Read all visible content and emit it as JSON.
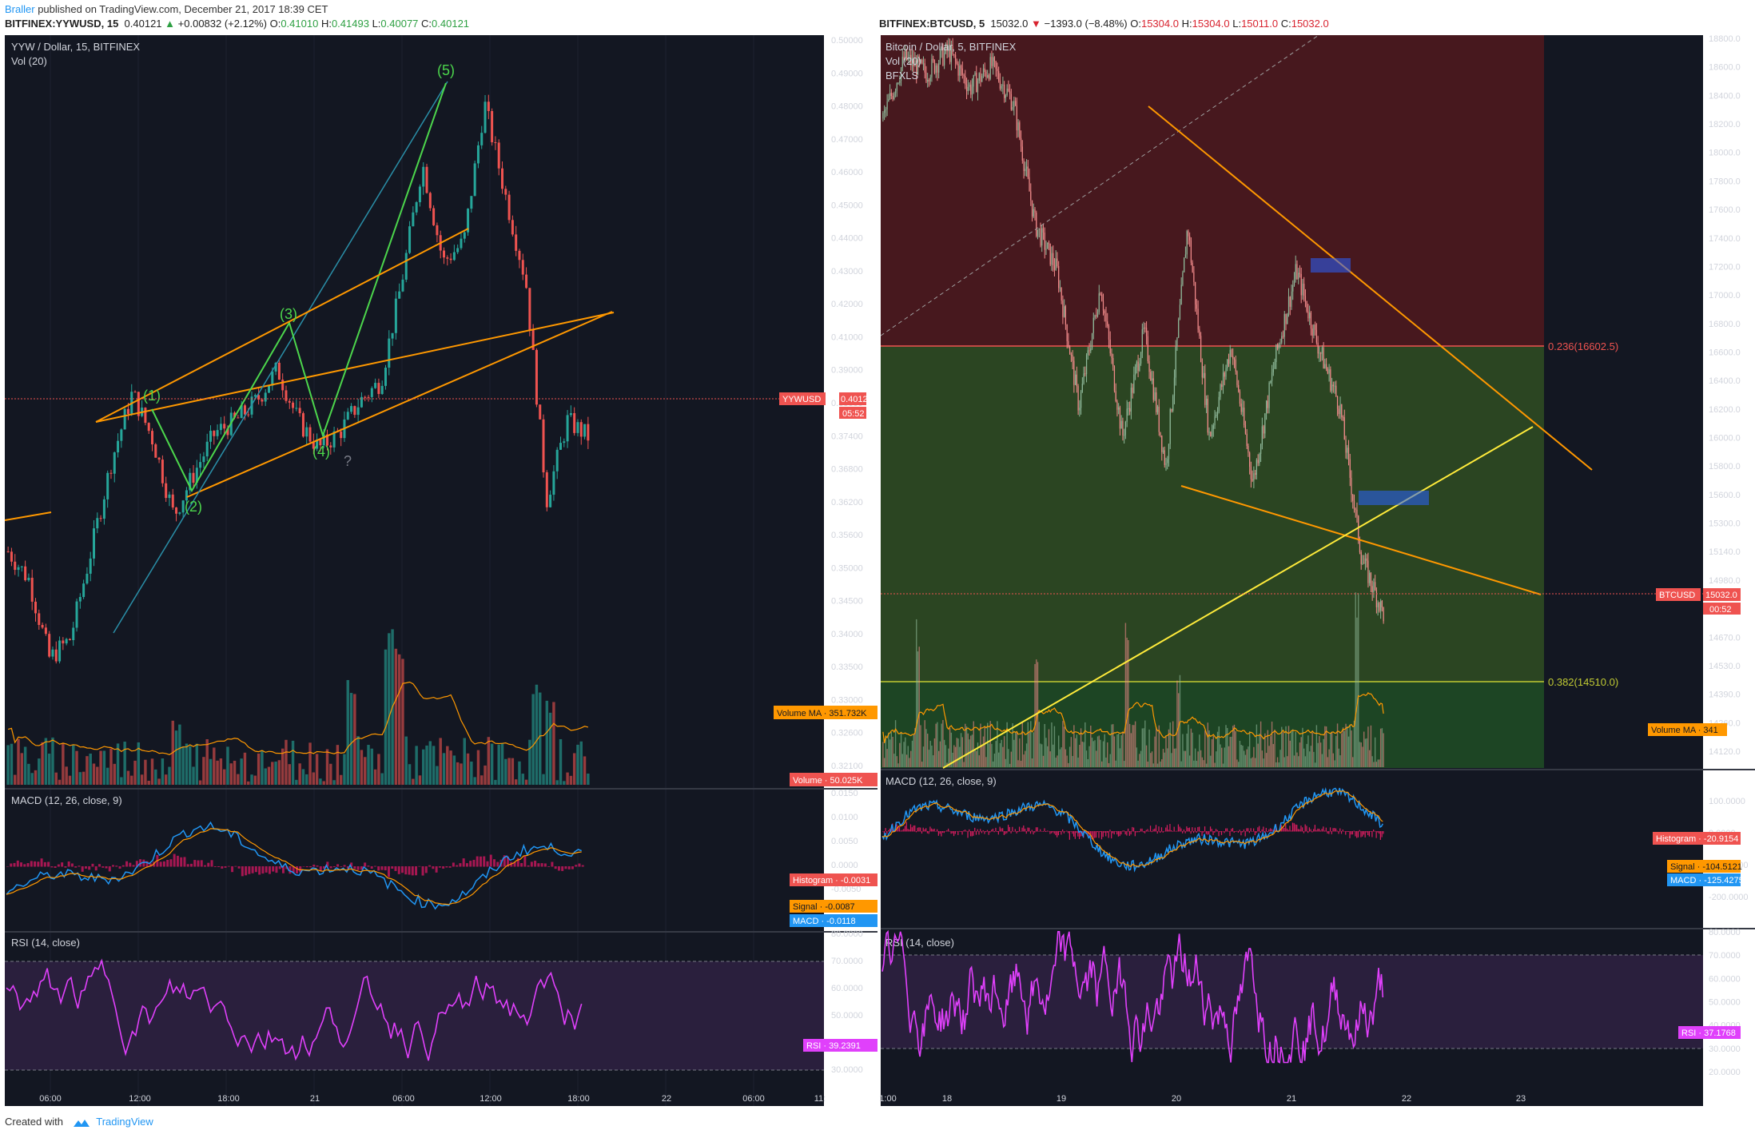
{
  "header": {
    "user": "Braller",
    "published_text": " published on TradingView.com, December 21, 2017 18:39 CET"
  },
  "left": {
    "symbol_line": {
      "symbol": "BITFINEX:YYWUSD, 15",
      "price": "0.40121",
      "arrow": "▲",
      "change": "+0.00832 (+2.12%)",
      "o_label": "O:",
      "o": "0.41010",
      "h_label": "H:",
      "h": "0.41493",
      "l_label": "L:",
      "l": "0.40077",
      "c_label": "C:",
      "c": "0.40121"
    },
    "title": "YYW / Dollar, 15, BITFINEX",
    "vol_label": "Vol (20)",
    "price_axis": [
      "0.50000",
      "0.49000",
      "0.48000",
      "0.47000",
      "0.46000",
      "0.45000",
      "0.44000",
      "0.43000",
      "0.42000",
      "0.41000",
      "0.39000",
      "0.38000",
      "0.37400",
      "0.36800",
      "0.36200",
      "0.35600",
      "0.35000",
      "0.34500",
      "0.34000",
      "0.33500",
      "0.33000",
      "0.32600",
      "0.32100"
    ],
    "last_tag": "YYWUSD",
    "last_value": "0.40121",
    "countdown": "05:52",
    "volume_ma_tag": "Volume MA",
    "volume_ma_value": "351.732K",
    "volume_tag": "Volume",
    "volume_value": "50.025K",
    "waves": [
      "(1)",
      "(2)",
      "(3)",
      "(4)",
      "(5)"
    ],
    "question": "?",
    "macd": {
      "title": "MACD (12, 26, close, 9)",
      "axis": [
        "0.0150",
        "0.0100",
        "0.0050",
        "0.0000",
        "-0.0050"
      ],
      "hist_tag": "Histogram",
      "hist_value": "-0.0031",
      "signal_tag": "Signal",
      "signal_value": "-0.0087",
      "macd_tag": "MACD",
      "macd_value": "-0.0118"
    },
    "rsi": {
      "title": "RSI (14, close)",
      "axis": [
        "80.0000",
        "70.0000",
        "60.0000",
        "50.0000",
        "40.0000",
        "30.0000"
      ],
      "tag": "RSI",
      "value": "39.2391"
    },
    "time_axis": [
      "06:00",
      "12:00",
      "18:00",
      "21",
      "06:00",
      "12:00",
      "18:00",
      "22",
      "06:00",
      "11:"
    ]
  },
  "right": {
    "symbol_line": {
      "symbol": "BITFINEX:BTCUSD, 5",
      "price": "15032.0",
      "arrow": "▼",
      "change": "−1393.0 (−8.48%)",
      "o_label": "O:",
      "o": "15304.0",
      "h_label": "H:",
      "h": "15304.0",
      "l_label": "L:",
      "l": "15011.0",
      "c_label": "C:",
      "c": "15032.0"
    },
    "title": "Bitcoin / Dollar, 5, BITFINEX",
    "vol_label": "Vol (20)",
    "bfxls": "BFXLS",
    "price_axis": [
      "18800.0",
      "18600.0",
      "18400.0",
      "18200.0",
      "18000.0",
      "17800.0",
      "17600.0",
      "17400.0",
      "17200.0",
      "17000.0",
      "16800.0",
      "16600.0",
      "16400.0",
      "16200.0",
      "16000.0",
      "15800.0",
      "15600.0",
      "15300.0",
      "15140.0",
      "14980.0",
      "14820.0",
      "14670.0",
      "14530.0",
      "14390.0",
      "14260.0",
      "14120.0"
    ],
    "fib_236": "0.236(16602.5)",
    "fib_382": "0.382(14510.0)",
    "last_tag": "BTCUSD",
    "last_value": "15032.0",
    "countdown": "00:52",
    "volume_ma_tag": "Volume MA",
    "volume_ma_value": "341",
    "macd": {
      "title": "MACD (12, 26, close, 9)",
      "axis": [
        "100.0000",
        "0.0000",
        "-100.0000",
        "-200.0000"
      ],
      "hist_tag": "Histogram",
      "hist_value": "-20.9154",
      "signal_tag": "Signal",
      "signal_value": "-104.5121",
      "macd_tag": "MACD",
      "macd_value": "-125.4275"
    },
    "rsi": {
      "title": "RSI (14, close)",
      "axis": [
        "80.0000",
        "70.0000",
        "60.0000",
        "50.0000",
        "40.0000",
        "30.0000",
        "20.0000"
      ],
      "tag": "RSI",
      "value": "37.1768"
    },
    "time_axis": [
      "1:00",
      "18",
      "19",
      "20",
      "21",
      "22",
      "23"
    ]
  },
  "footer": {
    "created_with": "Created with",
    "brand": "TradingView"
  },
  "colors": {
    "bg": "#131722",
    "up": "#26a69a",
    "down": "#ef5350",
    "orange": "#ff9800",
    "wave_green": "#4caf50",
    "macd_blue": "#2196f3",
    "rsi_magenta": "#e040fb",
    "fib_red": "#5a1a1e",
    "fib_green": "#2b4a1f",
    "yellow": "#ffeb3b"
  },
  "chart_data": [
    {
      "type": "candlestick",
      "title": "YYW / Dollar, 15, BITFINEX",
      "ylim": [
        0.318,
        0.501
      ],
      "x": [
        "06:00",
        "12:00",
        "18:00",
        "21",
        "06:00",
        "12:00",
        "18:00"
      ],
      "close_path": [
        0.372,
        0.365,
        0.345,
        0.35,
        0.372,
        0.395,
        0.412,
        0.4,
        0.381,
        0.392,
        0.402,
        0.405,
        0.41,
        0.418,
        0.405,
        0.398,
        0.402,
        0.41,
        0.415,
        0.44,
        0.47,
        0.445,
        0.45,
        0.485,
        0.462,
        0.44,
        0.385,
        0.405,
        0.401
      ],
      "wave_labels": [
        "(1)",
        "(2)",
        "(3)",
        "(4)",
        "(5)"
      ],
      "wave_prices": [
        0.4195,
        0.378,
        0.4195,
        0.3915,
        0.486
      ]
    },
    {
      "type": "candlestick",
      "title": "Bitcoin / Dollar, 5, BITFINEX",
      "ylim": [
        14050,
        18850
      ],
      "x": [
        "18",
        "19",
        "20",
        "21",
        "22",
        "23"
      ],
      "close_path": [
        18300,
        18700,
        18600,
        18750,
        18500,
        18650,
        18400,
        17600,
        17300,
        16400,
        17200,
        16200,
        16900,
        16000,
        17600,
        16200,
        16800,
        15900,
        16700,
        17300,
        16800,
        16400,
        15400,
        15032
      ],
      "fib_levels": [
        {
          "level": "0.236",
          "price": 16602.5
        },
        {
          "level": "0.382",
          "price": 14510.0
        }
      ]
    }
  ]
}
